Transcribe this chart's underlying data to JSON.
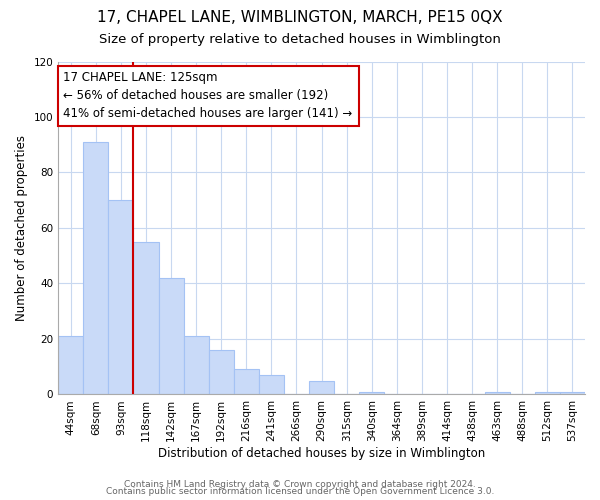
{
  "title": "17, CHAPEL LANE, WIMBLINGTON, MARCH, PE15 0QX",
  "subtitle": "Size of property relative to detached houses in Wimblington",
  "xlabel": "Distribution of detached houses by size in Wimblington",
  "ylabel": "Number of detached properties",
  "footer_lines": [
    "Contains HM Land Registry data © Crown copyright and database right 2024.",
    "Contains public sector information licensed under the Open Government Licence 3.0."
  ],
  "bar_labels": [
    "44sqm",
    "68sqm",
    "93sqm",
    "118sqm",
    "142sqm",
    "167sqm",
    "192sqm",
    "216sqm",
    "241sqm",
    "266sqm",
    "290sqm",
    "315sqm",
    "340sqm",
    "364sqm",
    "389sqm",
    "414sqm",
    "438sqm",
    "463sqm",
    "488sqm",
    "512sqm",
    "537sqm"
  ],
  "bar_values": [
    21,
    91,
    70,
    55,
    42,
    21,
    16,
    9,
    7,
    0,
    5,
    0,
    1,
    0,
    0,
    0,
    0,
    1,
    0,
    1,
    1
  ],
  "bar_color": "#c9daf8",
  "bar_edge_color": "#a4c2f4",
  "vline_color": "#cc0000",
  "annotation_box_text": "17 CHAPEL LANE: 125sqm\n← 56% of detached houses are smaller (192)\n41% of semi-detached houses are larger (141) →",
  "annotation_box_edge_color": "#cc0000",
  "annotation_box_facecolor": "#ffffff",
  "ylim": [
    0,
    120
  ],
  "yticks": [
    0,
    20,
    40,
    60,
    80,
    100,
    120
  ],
  "background_color": "#ffffff",
  "grid_color": "#c8d8f0",
  "title_fontsize": 11,
  "subtitle_fontsize": 9.5,
  "axis_label_fontsize": 8.5,
  "tick_fontsize": 7.5,
  "annotation_fontsize": 8.5,
  "footer_fontsize": 6.5
}
